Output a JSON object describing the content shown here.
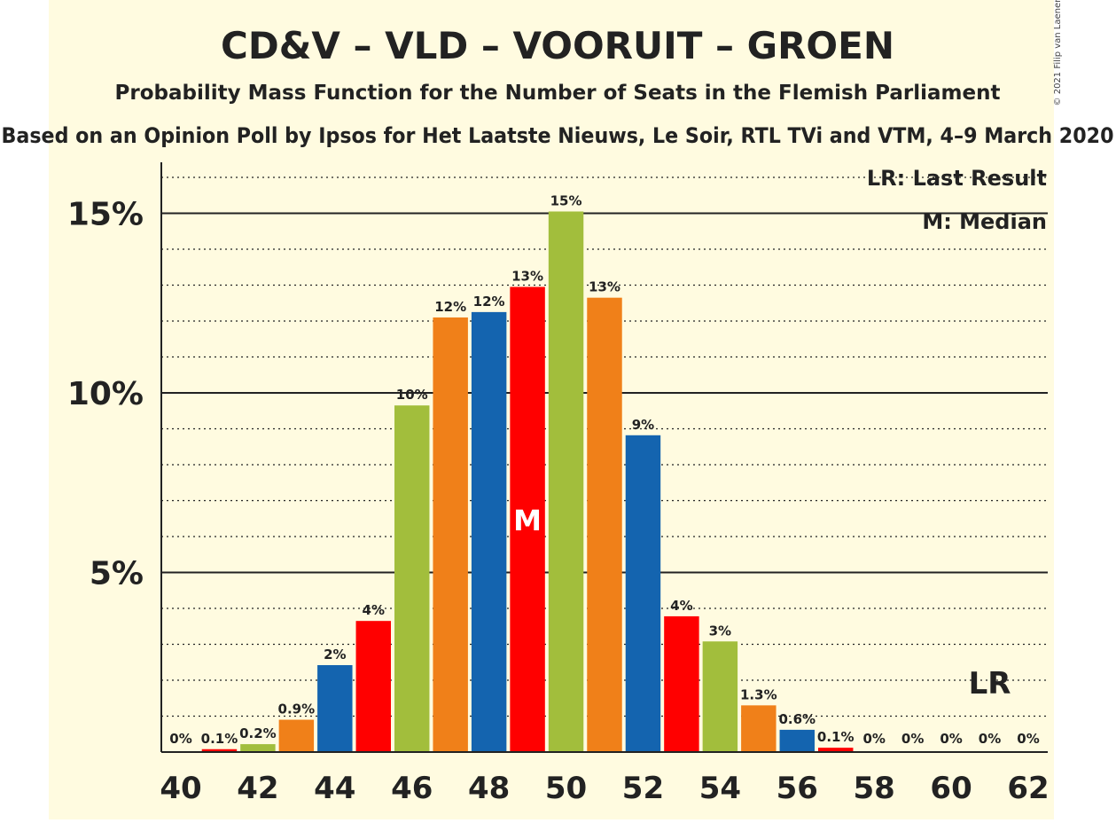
{
  "chart_data": {
    "type": "bar",
    "title": "CD&V – VLD – VOORUIT – GROEN",
    "subtitle": "Probability Mass Function for the Number of Seats in the Flemish Parliament",
    "subtitle2": "Based on an Opinion Poll by Ipsos for Het Laatste Nieuws, Le Soir, RTL TVi and VTM, 4–9 March 2020",
    "copyright": "© 2021 Filip van Laenen",
    "legend": {
      "lr": "LR: Last Result",
      "m": "M: Median",
      "placement": "top-right"
    },
    "xlim": [
      40,
      62
    ],
    "ylim": [
      0,
      16.5
    ],
    "y_ticks": [
      {
        "value": 5,
        "label": "5%"
      },
      {
        "value": 10,
        "label": "10%"
      },
      {
        "value": 15,
        "label": "15%"
      }
    ],
    "x_ticks": [
      {
        "value": 40,
        "label": "40"
      },
      {
        "value": 42,
        "label": "42"
      },
      {
        "value": 44,
        "label": "44"
      },
      {
        "value": 46,
        "label": "46"
      },
      {
        "value": 48,
        "label": "48"
      },
      {
        "value": 50,
        "label": "50"
      },
      {
        "value": 52,
        "label": "52"
      },
      {
        "value": 54,
        "label": "54"
      },
      {
        "value": 56,
        "label": "56"
      },
      {
        "value": 58,
        "label": "58"
      },
      {
        "value": 60,
        "label": "60"
      },
      {
        "value": 62,
        "label": "62"
      }
    ],
    "bars": [
      {
        "seats": 40,
        "value": 0,
        "label": "0%"
      },
      {
        "seats": 41,
        "value": 0.08,
        "label": "0.1%"
      },
      {
        "seats": 42,
        "value": 0.22,
        "label": "0.2%"
      },
      {
        "seats": 43,
        "value": 0.9,
        "label": "0.9%"
      },
      {
        "seats": 44,
        "value": 2.42,
        "label": "2%"
      },
      {
        "seats": 45,
        "value": 3.65,
        "label": "4%"
      },
      {
        "seats": 46,
        "value": 9.65,
        "label": "10%"
      },
      {
        "seats": 47,
        "value": 12.1,
        "label": "12%"
      },
      {
        "seats": 48,
        "value": 12.25,
        "label": "12%"
      },
      {
        "seats": 49,
        "value": 12.95,
        "label": "13%"
      },
      {
        "seats": 50,
        "value": 15.05,
        "label": "15%"
      },
      {
        "seats": 51,
        "value": 12.65,
        "label": "13%"
      },
      {
        "seats": 52,
        "value": 8.82,
        "label": "9%"
      },
      {
        "seats": 53,
        "value": 3.78,
        "label": "4%"
      },
      {
        "seats": 54,
        "value": 3.08,
        "label": "3%"
      },
      {
        "seats": 55,
        "value": 1.3,
        "label": "1.3%"
      },
      {
        "seats": 56,
        "value": 0.62,
        "label": "0.6%"
      },
      {
        "seats": 57,
        "value": 0.12,
        "label": "0.1%"
      },
      {
        "seats": 58,
        "value": 0,
        "label": "0%"
      },
      {
        "seats": 59,
        "value": 0,
        "label": "0%"
      },
      {
        "seats": 60,
        "value": 0,
        "label": "0%"
      },
      {
        "seats": 61,
        "value": 0,
        "label": "0%"
      },
      {
        "seats": 62,
        "value": 0,
        "label": "0%"
      }
    ],
    "median": {
      "seats": 49,
      "label": "M"
    },
    "last_result": {
      "seats": 61,
      "label": "LR"
    },
    "colors": {
      "background": "#FFFBE0",
      "palette": [
        "#1464AF",
        "#FF0000",
        "#A2BE3C",
        "#F08019"
      ],
      "text": "#222222"
    },
    "grid": true
  }
}
